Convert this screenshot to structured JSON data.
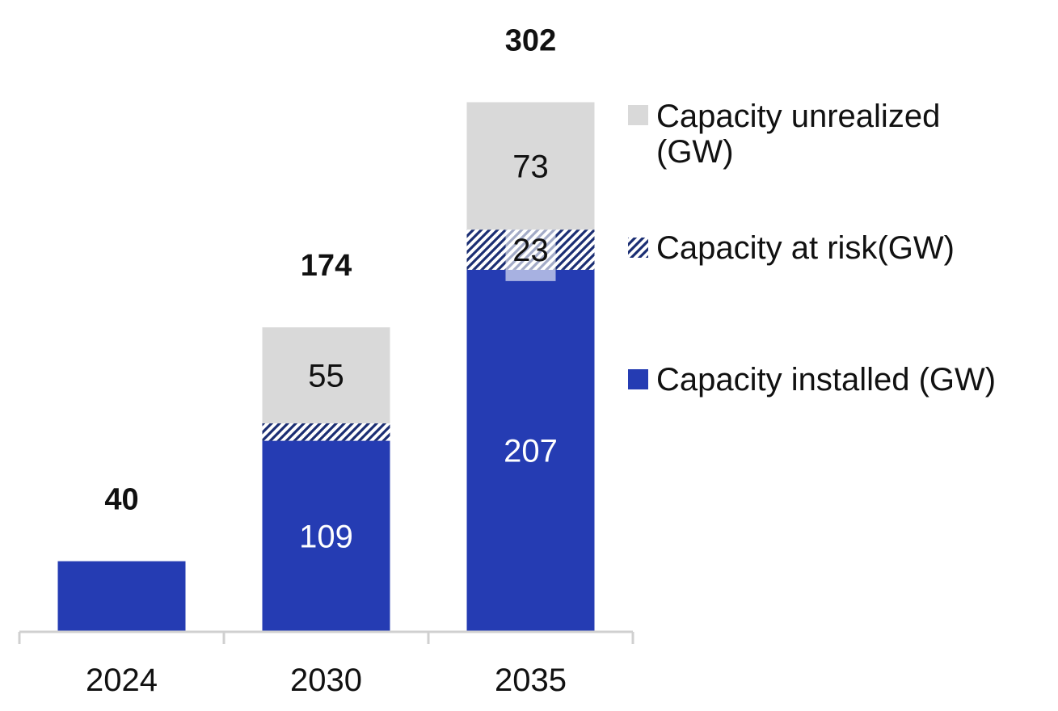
{
  "chart_data": {
    "type": "bar",
    "stacked": true,
    "categories": [
      "2024",
      "2030",
      "2035"
    ],
    "series": [
      {
        "name": "Capacity installed (GW)",
        "values": [
          40,
          109,
          207
        ],
        "value_labels": [
          "",
          "109",
          "207"
        ],
        "color": "#253cb3",
        "pattern": "solid"
      },
      {
        "name": "Capacity at risk(GW)",
        "values": [
          0,
          10,
          23
        ],
        "value_labels": [
          "",
          "",
          "23"
        ],
        "color": "#1b2e73",
        "pattern": "hatched"
      },
      {
        "name": "Capacity unrealized\n(GW)",
        "values": [
          0,
          55,
          73
        ],
        "value_labels": [
          "",
          "55",
          "73"
        ],
        "color": "#d9d9d9",
        "pattern": "solid"
      }
    ],
    "totals": [
      "40",
      "174",
      "302"
    ],
    "legend_order": [
      2,
      1,
      0
    ],
    "legend": "right",
    "grid": false,
    "ylim": [
      0,
      302
    ]
  }
}
